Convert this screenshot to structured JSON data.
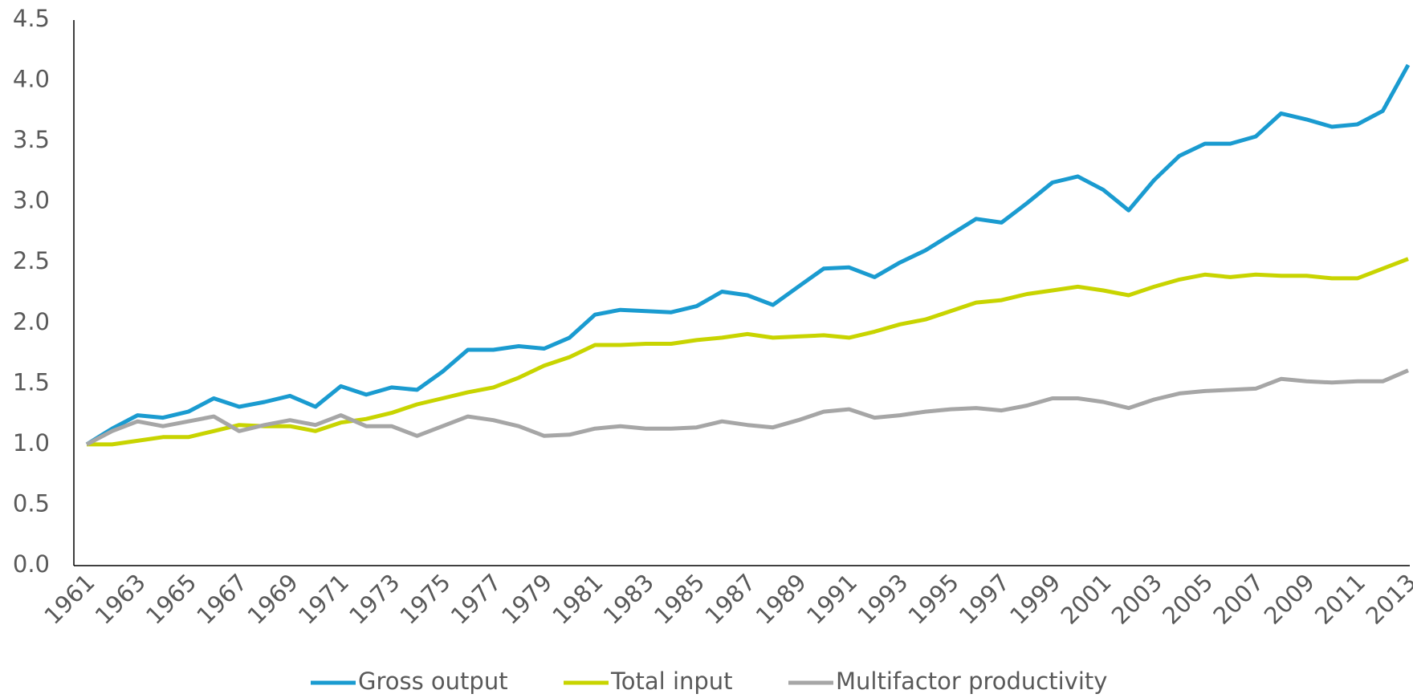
{
  "chart_data": {
    "type": "line",
    "x": [
      1961,
      1962,
      1963,
      1964,
      1965,
      1966,
      1967,
      1968,
      1969,
      1970,
      1971,
      1972,
      1973,
      1974,
      1975,
      1976,
      1977,
      1978,
      1979,
      1980,
      1981,
      1982,
      1983,
      1984,
      1985,
      1986,
      1987,
      1988,
      1989,
      1990,
      1991,
      1992,
      1993,
      1994,
      1995,
      1996,
      1997,
      1998,
      1999,
      2000,
      2001,
      2002,
      2003,
      2004,
      2005,
      2006,
      2007,
      2008,
      2009,
      2010,
      2011,
      2012,
      2013
    ],
    "xlim": [
      1961,
      2013
    ],
    "xticks": [
      1961,
      1963,
      1965,
      1967,
      1969,
      1971,
      1973,
      1975,
      1977,
      1979,
      1981,
      1983,
      1985,
      1987,
      1989,
      1991,
      1993,
      1995,
      1997,
      1999,
      2001,
      2003,
      2005,
      2007,
      2009,
      2011,
      2013
    ],
    "ylim": [
      0,
      4.5
    ],
    "yticks": [
      {
        "value": 0,
        "label": "0.0"
      },
      0.5,
      {
        "value": 1,
        "label": "1.0"
      },
      1.5,
      {
        "value": 2,
        "label": "2.0"
      },
      2.5,
      {
        "value": 3,
        "label": "3.0"
      },
      3.5,
      {
        "value": 4,
        "label": "4.0"
      },
      4.5
    ],
    "grid": false,
    "legend": "bottom",
    "series": [
      {
        "name": "Gross output",
        "color": "#1a9bd0",
        "values": [
          1.0,
          1.13,
          1.24,
          1.22,
          1.27,
          1.38,
          1.31,
          1.35,
          1.4,
          1.31,
          1.48,
          1.41,
          1.47,
          1.45,
          1.6,
          1.78,
          1.78,
          1.81,
          1.79,
          1.88,
          2.07,
          2.11,
          2.1,
          2.09,
          2.14,
          2.26,
          2.23,
          2.15,
          2.3,
          2.45,
          2.46,
          2.38,
          2.5,
          2.6,
          2.73,
          2.86,
          2.83,
          2.99,
          3.16,
          3.21,
          3.1,
          2.93,
          3.18,
          3.38,
          3.48,
          3.48,
          3.54,
          3.73,
          3.68,
          3.62,
          3.64,
          3.75,
          4.13
        ]
      },
      {
        "name": "Total input",
        "color": "#c8d400",
        "values": [
          1.0,
          1.0,
          1.03,
          1.06,
          1.06,
          1.11,
          1.16,
          1.15,
          1.15,
          1.11,
          1.18,
          1.21,
          1.26,
          1.33,
          1.38,
          1.43,
          1.47,
          1.55,
          1.65,
          1.72,
          1.82,
          1.82,
          1.83,
          1.83,
          1.86,
          1.88,
          1.91,
          1.88,
          1.89,
          1.9,
          1.88,
          1.93,
          1.99,
          2.03,
          2.1,
          2.17,
          2.19,
          2.24,
          2.27,
          2.3,
          2.27,
          2.23,
          2.3,
          2.36,
          2.4,
          2.38,
          2.4,
          2.39,
          2.39,
          2.37,
          2.37,
          2.45,
          2.53
        ]
      },
      {
        "name": "Multifactor productivity",
        "color": "#a6a6a6",
        "values": [
          1.0,
          1.11,
          1.19,
          1.15,
          1.19,
          1.23,
          1.11,
          1.16,
          1.2,
          1.16,
          1.24,
          1.15,
          1.15,
          1.07,
          1.15,
          1.23,
          1.2,
          1.15,
          1.07,
          1.08,
          1.13,
          1.15,
          1.13,
          1.13,
          1.14,
          1.19,
          1.16,
          1.14,
          1.2,
          1.27,
          1.29,
          1.22,
          1.24,
          1.27,
          1.29,
          1.3,
          1.28,
          1.32,
          1.38,
          1.38,
          1.35,
          1.3,
          1.37,
          1.42,
          1.44,
          1.45,
          1.46,
          1.54,
          1.52,
          1.51,
          1.52,
          1.52,
          1.61
        ]
      }
    ]
  }
}
